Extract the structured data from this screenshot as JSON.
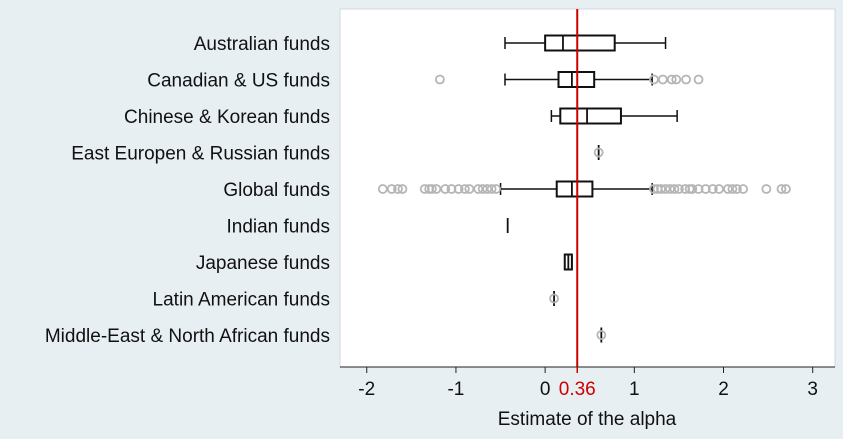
{
  "chart_data": {
    "type": "boxplot",
    "orientation": "horizontal",
    "xlabel": "Estimate of the alpha",
    "xlim": [
      -2.3,
      3.25
    ],
    "xticks": [
      -2,
      -1,
      0,
      1,
      2,
      3
    ],
    "xtick_labels": [
      "-2",
      "-1",
      "0",
      "1",
      "2",
      "3"
    ],
    "reference_line": {
      "value": 0.36,
      "label": "0.36",
      "color": "#cc0000"
    },
    "box_color": "#111111",
    "outlier_color": "#b5b5b5",
    "series": [
      {
        "category": "Australian funds",
        "whisker_low": -0.45,
        "q1": 0.0,
        "median": 0.2,
        "q3": 0.78,
        "whisker_high": 1.35,
        "outliers": []
      },
      {
        "category": "Canadian & US funds",
        "whisker_low": -0.45,
        "q1": 0.15,
        "median": 0.3,
        "q3": 0.55,
        "whisker_high": 1.2,
        "outliers": [
          -1.18,
          1.22,
          1.32,
          1.42,
          1.47,
          1.58,
          1.72
        ]
      },
      {
        "category": "Chinese & Korean funds",
        "whisker_low": 0.07,
        "q1": 0.17,
        "median": 0.47,
        "q3": 0.85,
        "whisker_high": 1.48,
        "outliers": []
      },
      {
        "category": "East Europen & Russian funds",
        "whisker_low": 0.6,
        "q1": 0.6,
        "median": 0.6,
        "q3": 0.6,
        "whisker_high": 0.6,
        "outliers": [
          0.6
        ]
      },
      {
        "category": "Global funds",
        "whisker_low": -0.5,
        "q1": 0.13,
        "median": 0.3,
        "q3": 0.53,
        "whisker_high": 1.2,
        "outliers": [
          -1.82,
          -1.72,
          -1.65,
          -1.6,
          -1.35,
          -1.3,
          -1.27,
          -1.22,
          -1.12,
          -1.05,
          -0.97,
          -0.9,
          -0.85,
          -0.75,
          -0.7,
          -0.65,
          -0.6,
          -0.55,
          1.22,
          1.26,
          1.3,
          1.35,
          1.4,
          1.45,
          1.5,
          1.57,
          1.62,
          1.65,
          1.72,
          1.8,
          1.88,
          1.95,
          2.05,
          2.1,
          2.15,
          2.22,
          2.48,
          2.65,
          2.7
        ]
      },
      {
        "category": "Indian funds",
        "whisker_low": -0.42,
        "q1": -0.42,
        "median": -0.42,
        "q3": -0.42,
        "whisker_high": -0.42,
        "outliers": []
      },
      {
        "category": "Japanese funds",
        "whisker_low": 0.22,
        "q1": 0.22,
        "median": 0.26,
        "q3": 0.3,
        "whisker_high": 0.3,
        "outliers": []
      },
      {
        "category": "Latin American funds",
        "whisker_low": 0.1,
        "q1": 0.1,
        "median": 0.1,
        "q3": 0.1,
        "whisker_high": 0.1,
        "outliers": [
          0.1
        ]
      },
      {
        "category": "Middle-East & North African funds",
        "whisker_low": 0.63,
        "q1": 0.63,
        "median": 0.63,
        "q3": 0.63,
        "whisker_high": 0.63,
        "outliers": [
          0.63
        ]
      }
    ]
  }
}
